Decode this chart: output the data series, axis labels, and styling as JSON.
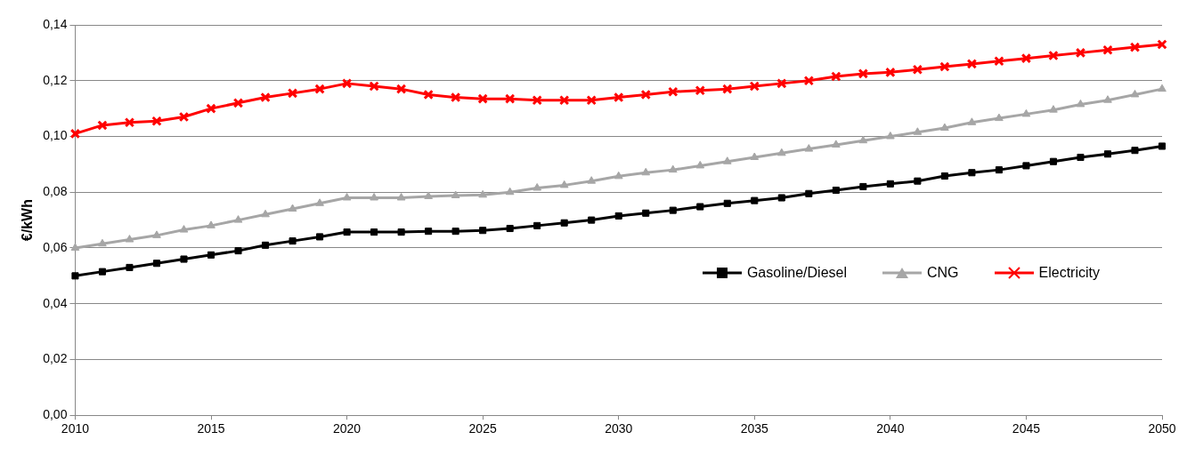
{
  "chart_data": {
    "type": "line",
    "ylabel": "€/kWh",
    "x": [
      2010,
      2011,
      2012,
      2013,
      2014,
      2015,
      2016,
      2017,
      2018,
      2019,
      2020,
      2021,
      2022,
      2023,
      2024,
      2025,
      2026,
      2027,
      2028,
      2029,
      2030,
      2031,
      2032,
      2033,
      2034,
      2035,
      2036,
      2037,
      2038,
      2039,
      2040,
      2041,
      2042,
      2043,
      2044,
      2045,
      2046,
      2047,
      2048,
      2049,
      2050
    ],
    "series": [
      {
        "name": "Gasoline/Diesel",
        "color": "#000000",
        "marker": "square",
        "values": [
          0.05,
          0.0515,
          0.053,
          0.0545,
          0.056,
          0.0575,
          0.059,
          0.061,
          0.0625,
          0.064,
          0.0657,
          0.0657,
          0.0657,
          0.066,
          0.066,
          0.0663,
          0.067,
          0.068,
          0.069,
          0.07,
          0.0715,
          0.0725,
          0.0735,
          0.0748,
          0.076,
          0.077,
          0.078,
          0.0795,
          0.0807,
          0.082,
          0.083,
          0.084,
          0.0858,
          0.087,
          0.088,
          0.0895,
          0.091,
          0.0925,
          0.0937,
          0.095,
          0.0965
        ]
      },
      {
        "name": "CNG",
        "color": "#a6a6a6",
        "marker": "triangle",
        "values": [
          0.06,
          0.0615,
          0.063,
          0.0645,
          0.0665,
          0.068,
          0.07,
          0.072,
          0.074,
          0.076,
          0.078,
          0.078,
          0.078,
          0.0785,
          0.0788,
          0.079,
          0.08,
          0.0815,
          0.0825,
          0.084,
          0.0857,
          0.087,
          0.088,
          0.0895,
          0.091,
          0.0925,
          0.094,
          0.0955,
          0.097,
          0.0985,
          0.1,
          0.1015,
          0.103,
          0.105,
          0.1065,
          0.108,
          0.1095,
          0.1115,
          0.113,
          0.115,
          0.117
        ]
      },
      {
        "name": "Electricity",
        "color": "#ff0000",
        "marker": "cross",
        "values": [
          0.101,
          0.104,
          0.105,
          0.1055,
          0.107,
          0.11,
          0.112,
          0.114,
          0.1155,
          0.117,
          0.119,
          0.118,
          0.117,
          0.115,
          0.114,
          0.1135,
          0.1135,
          0.113,
          0.113,
          0.113,
          0.114,
          0.115,
          0.116,
          0.1165,
          0.117,
          0.118,
          0.119,
          0.12,
          0.1215,
          0.1225,
          0.123,
          0.124,
          0.125,
          0.126,
          0.127,
          0.128,
          0.129,
          0.13,
          0.131,
          0.132,
          0.133
        ]
      }
    ],
    "xlim": [
      2010,
      2050
    ],
    "xticks": [
      2010,
      2015,
      2020,
      2025,
      2030,
      2035,
      2040,
      2045,
      2050
    ],
    "ylim": [
      0,
      0.14
    ],
    "yticks": [
      {
        "value": 0,
        "label": "0,00"
      },
      {
        "value": 0.02,
        "label": "0,02"
      },
      {
        "value": 0.04,
        "label": "0,04"
      },
      {
        "value": 0.06,
        "label": "0,06"
      },
      {
        "value": 0.08,
        "label": "0,08"
      },
      {
        "value": 0.1,
        "label": "0,10"
      },
      {
        "value": 0.12,
        "label": "0,12"
      },
      {
        "value": 0.14,
        "label": "0,14"
      }
    ],
    "grid": "y",
    "legend": "right",
    "line_style": "solid"
  }
}
